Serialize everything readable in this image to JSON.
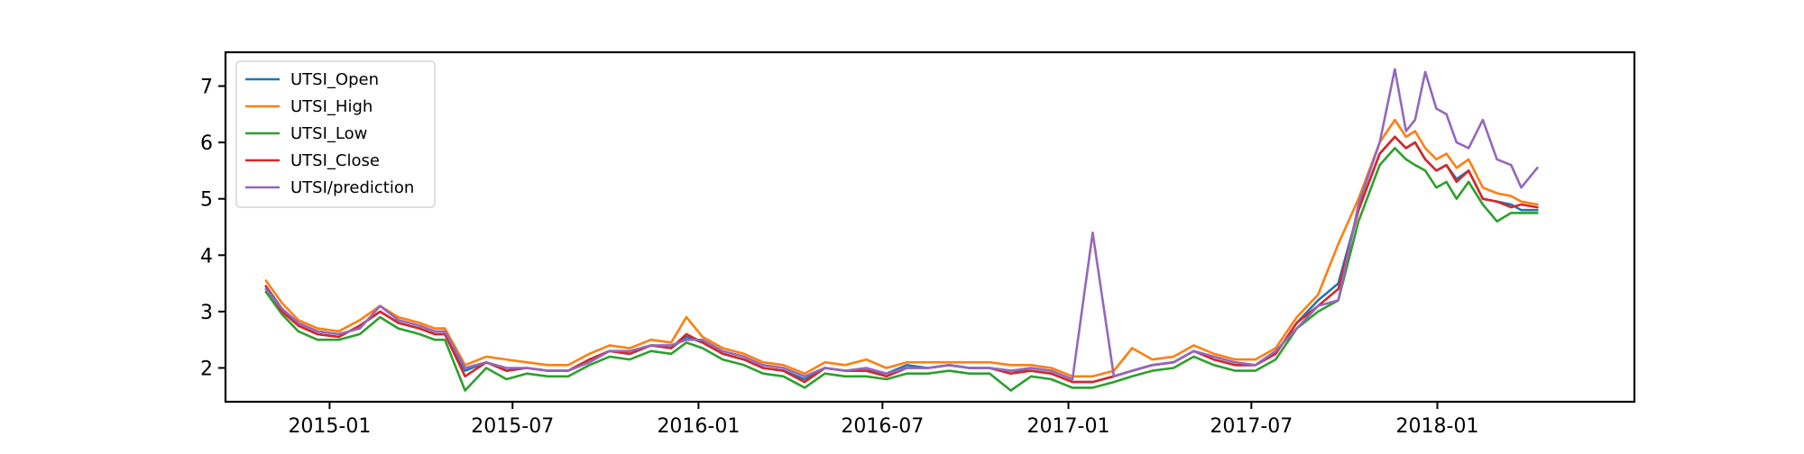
{
  "chart_data": {
    "type": "line",
    "title": "",
    "xlabel": "",
    "ylabel": "",
    "x_range": [
      "2014-09-20",
      "2018-07-15"
    ],
    "ylim": [
      1.4,
      7.6
    ],
    "x_tick_labels": [
      {
        "date": "2015-01-01",
        "label": "2015-01"
      },
      {
        "date": "2015-07-01",
        "label": "2015-07"
      },
      {
        "date": "2016-01-01",
        "label": "2016-01"
      },
      {
        "date": "2016-07-01",
        "label": "2016-07"
      },
      {
        "date": "2017-01-01",
        "label": "2017-01"
      },
      {
        "date": "2017-07-01",
        "label": "2017-07"
      },
      {
        "date": "2018-01-01",
        "label": "2018-01"
      }
    ],
    "y_ticks": [
      2,
      3,
      4,
      5,
      6,
      7
    ],
    "grid": false,
    "legend_position": "upper-left",
    "dates": [
      "2014-10-30",
      "2014-11-15",
      "2014-12-01",
      "2014-12-20",
      "2015-01-10",
      "2015-01-31",
      "2015-02-20",
      "2015-03-10",
      "2015-03-31",
      "2015-04-15",
      "2015-04-25",
      "2015-05-15",
      "2015-06-05",
      "2015-06-25",
      "2015-07-15",
      "2015-08-05",
      "2015-08-25",
      "2015-09-15",
      "2015-10-05",
      "2015-10-25",
      "2015-11-15",
      "2015-12-05",
      "2015-12-20",
      "2016-01-05",
      "2016-01-25",
      "2016-02-15",
      "2016-03-05",
      "2016-03-25",
      "2016-04-15",
      "2016-05-05",
      "2016-05-25",
      "2016-06-15",
      "2016-07-05",
      "2016-07-25",
      "2016-08-15",
      "2016-09-05",
      "2016-09-25",
      "2016-10-15",
      "2016-11-05",
      "2016-11-25",
      "2016-12-15",
      "2017-01-05",
      "2017-01-25",
      "2017-02-15",
      "2017-03-05",
      "2017-03-25",
      "2017-04-15",
      "2017-05-05",
      "2017-05-25",
      "2017-06-15",
      "2017-07-05",
      "2017-07-25",
      "2017-08-15",
      "2017-09-05",
      "2017-09-25",
      "2017-10-15",
      "2017-11-05",
      "2017-11-20",
      "2017-12-01",
      "2017-12-10",
      "2017-12-20",
      "2017-12-31",
      "2018-01-10",
      "2018-01-20",
      "2018-02-01",
      "2018-02-15",
      "2018-03-01",
      "2018-03-15",
      "2018-03-25",
      "2018-04-10"
    ],
    "series": [
      {
        "name": "UTSI_Open",
        "color": "#1f77b4",
        "values": [
          3.45,
          3.05,
          2.75,
          2.6,
          2.55,
          2.75,
          3.0,
          2.8,
          2.7,
          2.6,
          2.6,
          1.95,
          2.1,
          1.95,
          2.0,
          1.95,
          1.95,
          2.15,
          2.3,
          2.25,
          2.4,
          2.35,
          2.55,
          2.45,
          2.25,
          2.15,
          2.0,
          1.95,
          1.8,
          2.0,
          1.95,
          1.95,
          1.9,
          2.05,
          2.0,
          2.05,
          2.0,
          2.0,
          1.95,
          1.95,
          1.9,
          1.75,
          1.75,
          1.85,
          1.95,
          2.05,
          2.1,
          2.3,
          2.15,
          2.05,
          2.05,
          2.25,
          2.8,
          3.2,
          3.5,
          4.8,
          5.8,
          6.1,
          5.9,
          6.0,
          5.7,
          5.5,
          5.6,
          5.35,
          5.5,
          5.0,
          4.95,
          4.9,
          4.8,
          4.8
        ]
      },
      {
        "name": "UTSI_High",
        "color": "#ff7f0e",
        "values": [
          3.55,
          3.15,
          2.85,
          2.7,
          2.65,
          2.85,
          3.1,
          2.9,
          2.8,
          2.7,
          2.7,
          2.05,
          2.2,
          2.15,
          2.1,
          2.05,
          2.05,
          2.25,
          2.4,
          2.35,
          2.5,
          2.45,
          2.9,
          2.55,
          2.35,
          2.25,
          2.1,
          2.05,
          1.9,
          2.1,
          2.05,
          2.15,
          2.0,
          2.1,
          2.1,
          2.1,
          2.1,
          2.1,
          2.05,
          2.05,
          2.0,
          1.85,
          1.85,
          1.95,
          2.35,
          2.15,
          2.2,
          2.4,
          2.25,
          2.15,
          2.15,
          2.35,
          2.9,
          3.3,
          4.2,
          5.0,
          6.0,
          6.4,
          6.1,
          6.2,
          5.9,
          5.7,
          5.8,
          5.55,
          5.7,
          5.2,
          5.1,
          5.05,
          4.95,
          4.9
        ]
      },
      {
        "name": "UTSI_Low",
        "color": "#2ca02c",
        "values": [
          3.35,
          2.95,
          2.65,
          2.5,
          2.5,
          2.6,
          2.9,
          2.7,
          2.6,
          2.5,
          2.5,
          1.6,
          2.0,
          1.8,
          1.9,
          1.85,
          1.85,
          2.05,
          2.2,
          2.15,
          2.3,
          2.25,
          2.45,
          2.35,
          2.15,
          2.05,
          1.9,
          1.85,
          1.65,
          1.9,
          1.85,
          1.85,
          1.8,
          1.9,
          1.9,
          1.95,
          1.9,
          1.9,
          1.6,
          1.85,
          1.8,
          1.65,
          1.65,
          1.75,
          1.85,
          1.95,
          2.0,
          2.2,
          2.05,
          1.95,
          1.95,
          2.15,
          2.7,
          3.0,
          3.2,
          4.6,
          5.6,
          5.9,
          5.7,
          5.6,
          5.5,
          5.2,
          5.3,
          5.0,
          5.3,
          4.9,
          4.6,
          4.75,
          4.75,
          4.75
        ]
      },
      {
        "name": "UTSI_Close",
        "color": "#d62728",
        "values": [
          3.45,
          3.0,
          2.75,
          2.6,
          2.55,
          2.75,
          3.0,
          2.8,
          2.7,
          2.6,
          2.6,
          1.85,
          2.1,
          1.95,
          2.0,
          1.95,
          1.95,
          2.15,
          2.3,
          2.25,
          2.4,
          2.35,
          2.6,
          2.45,
          2.25,
          2.15,
          2.0,
          1.95,
          1.75,
          2.0,
          1.95,
          1.95,
          1.85,
          2.0,
          2.0,
          2.05,
          2.0,
          2.0,
          1.9,
          1.95,
          1.9,
          1.75,
          1.75,
          1.85,
          1.95,
          2.05,
          2.1,
          2.3,
          2.15,
          2.05,
          2.05,
          2.25,
          2.8,
          3.1,
          3.4,
          4.8,
          5.8,
          6.1,
          5.9,
          6.0,
          5.7,
          5.5,
          5.6,
          5.3,
          5.5,
          5.0,
          4.95,
          4.85,
          4.9,
          4.85
        ]
      },
      {
        "name": "UTSI/prediction",
        "color": "#9467bd",
        "values": [
          3.4,
          3.05,
          2.8,
          2.65,
          2.6,
          2.7,
          3.1,
          2.85,
          2.75,
          2.65,
          2.65,
          2.0,
          2.1,
          2.0,
          2.0,
          1.95,
          1.95,
          2.1,
          2.3,
          2.3,
          2.4,
          2.4,
          2.5,
          2.5,
          2.3,
          2.2,
          2.05,
          2.0,
          1.85,
          2.0,
          1.95,
          2.0,
          1.9,
          2.0,
          2.0,
          2.05,
          2.0,
          2.0,
          1.95,
          2.0,
          1.95,
          1.8,
          4.4,
          1.85,
          1.95,
          2.05,
          2.1,
          2.3,
          2.2,
          2.1,
          2.05,
          2.3,
          2.7,
          3.1,
          3.2,
          4.9,
          6.0,
          7.3,
          6.2,
          6.4,
          7.25,
          6.6,
          6.5,
          6.0,
          5.9,
          6.4,
          5.7,
          5.6,
          5.2,
          5.55
        ]
      }
    ]
  }
}
